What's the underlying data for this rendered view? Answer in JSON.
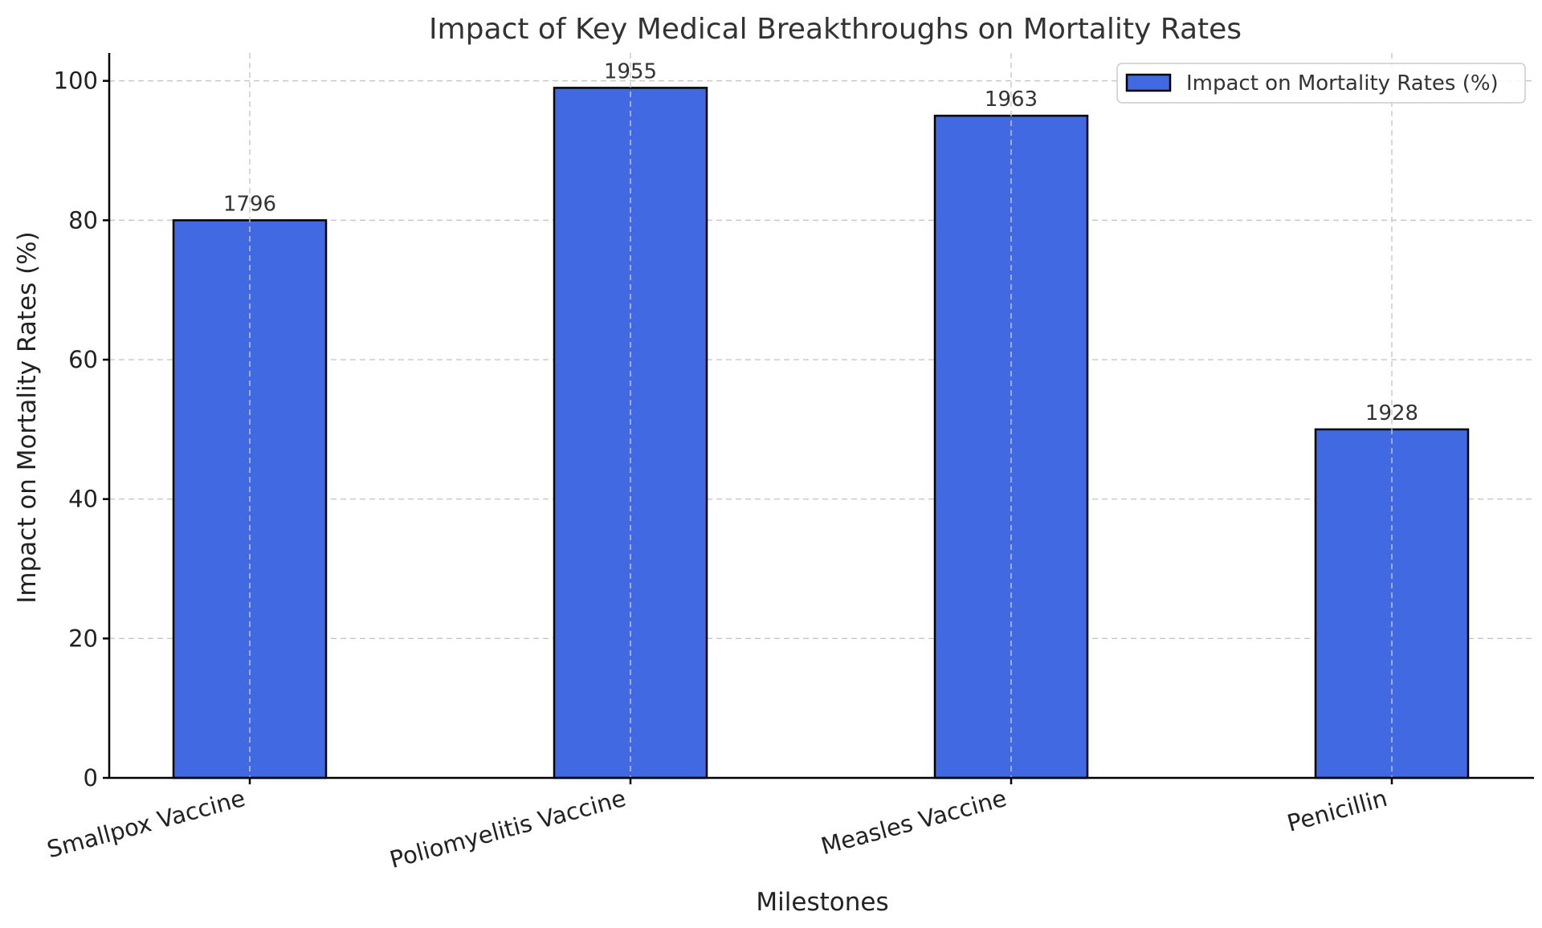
{
  "chart_data": {
    "type": "bar",
    "title": "Impact of Key Medical Breakthroughs on Mortality Rates",
    "xlabel": "Milestones",
    "ylabel": "Impact on Mortality Rates (%)",
    "categories": [
      "Smallpox Vaccine",
      "Poliomyelitis Vaccine",
      "Measles Vaccine",
      "Penicillin"
    ],
    "series": [
      {
        "name": "Impact on Mortality Rates (%)",
        "values": [
          80,
          99,
          95,
          50
        ],
        "color": "#4169e1",
        "data_labels": [
          "1796",
          "1955",
          "1963",
          "1928"
        ]
      }
    ],
    "ylim": [
      0,
      104
    ],
    "yticks": [
      0,
      20,
      40,
      60,
      80,
      100
    ],
    "grid": true,
    "legend_position": "top-right"
  }
}
